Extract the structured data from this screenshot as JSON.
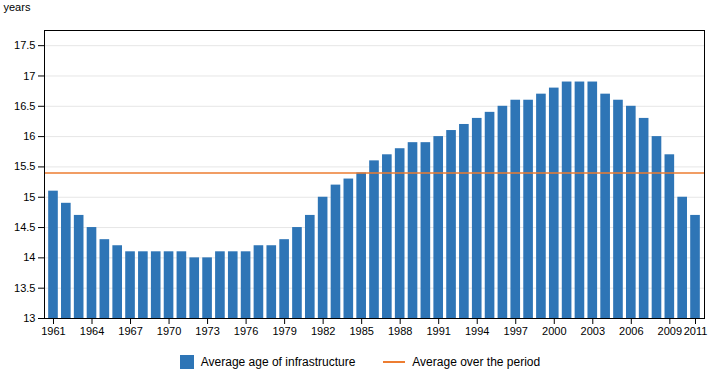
{
  "chart_data": {
    "type": "bar",
    "x": [
      1961,
      1962,
      1963,
      1964,
      1965,
      1966,
      1967,
      1968,
      1969,
      1970,
      1971,
      1972,
      1973,
      1974,
      1975,
      1976,
      1977,
      1978,
      1979,
      1980,
      1981,
      1982,
      1983,
      1984,
      1985,
      1986,
      1987,
      1988,
      1989,
      1990,
      1991,
      1992,
      1993,
      1994,
      1995,
      1996,
      1997,
      1998,
      1999,
      2000,
      2001,
      2002,
      2003,
      2004,
      2005,
      2006,
      2007,
      2008,
      2009,
      2010,
      2011
    ],
    "series": [
      {
        "name": "Average age of infrastructure",
        "type": "bar",
        "color": "#2e75b6",
        "values": [
          15.1,
          14.9,
          14.7,
          14.5,
          14.3,
          14.2,
          14.1,
          14.1,
          14.1,
          14.1,
          14.1,
          14.0,
          14.0,
          14.1,
          14.1,
          14.1,
          14.2,
          14.2,
          14.3,
          14.5,
          14.7,
          15.0,
          15.2,
          15.3,
          15.4,
          15.6,
          15.7,
          15.8,
          15.9,
          15.9,
          16.0,
          16.1,
          16.2,
          16.3,
          16.4,
          16.5,
          16.6,
          16.6,
          16.7,
          16.8,
          16.9,
          16.9,
          16.9,
          16.7,
          16.6,
          16.5,
          16.3,
          16.0,
          15.7,
          15.0,
          14.7
        ]
      },
      {
        "name": "Average over the period",
        "type": "hline",
        "color": "#ed7d31",
        "value": 15.4
      }
    ],
    "ylabel": "years",
    "xlim": [
      1960.3,
      2011.7
    ],
    "xticks": [
      1961,
      1964,
      1967,
      1970,
      1973,
      1976,
      1979,
      1982,
      1985,
      1988,
      1991,
      1994,
      1997,
      2000,
      2003,
      2006,
      2009,
      2011
    ],
    "ylim": [
      13,
      17.75
    ],
    "yticks": [
      13,
      13.5,
      14,
      14.5,
      15,
      15.5,
      16,
      16.5,
      17,
      17.5
    ],
    "grid": true,
    "legend": "bottom"
  }
}
